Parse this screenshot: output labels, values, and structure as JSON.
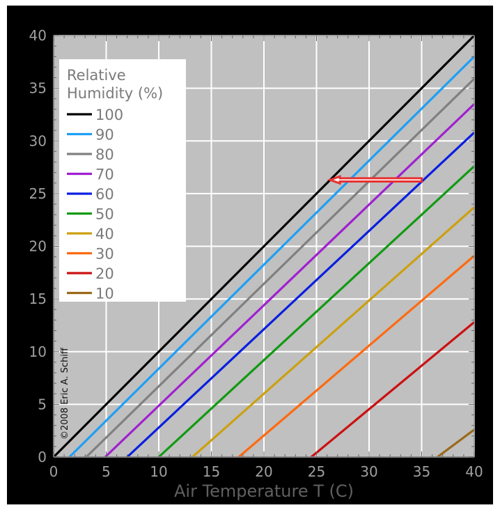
{
  "chart_data": {
    "type": "line",
    "title": "",
    "xlabel": "Air Temperature T (C)",
    "ylabel": "",
    "xlim": [
      0,
      40
    ],
    "ylim": [
      0,
      40
    ],
    "x_ticks": [
      "0",
      "5",
      "10",
      "15",
      "20",
      "25",
      "30",
      "35",
      "40"
    ],
    "y_ticks": [
      "0",
      "5",
      "10",
      "15",
      "20",
      "25",
      "30",
      "35",
      "40"
    ],
    "grid": true,
    "legend_title_lines": [
      "Relative",
      "Humidity (%)"
    ],
    "legend_position": "top-left",
    "series": [
      {
        "name": "100",
        "color": "#000000",
        "x": [
          0,
          40
        ],
        "y": [
          0,
          40
        ]
      },
      {
        "name": "90",
        "color": "#1e9ff5",
        "x": [
          1.5,
          40
        ],
        "y": [
          0,
          38.0
        ]
      },
      {
        "name": "80",
        "color": "#808080",
        "x": [
          3.1,
          40
        ],
        "y": [
          0,
          35.9
        ]
      },
      {
        "name": "70",
        "color": "#a020d0",
        "x": [
          4.9,
          40
        ],
        "y": [
          0,
          33.5
        ]
      },
      {
        "name": "60",
        "color": "#0a1ee0",
        "x": [
          7.0,
          40
        ],
        "y": [
          0,
          30.8
        ]
      },
      {
        "name": "50",
        "color": "#119a11",
        "x": [
          10.0,
          40
        ],
        "y": [
          0,
          27.6
        ]
      },
      {
        "name": "40",
        "color": "#cca010",
        "x": [
          13.2,
          40
        ],
        "y": [
          0,
          23.7
        ]
      },
      {
        "name": "30",
        "color": "#ff6a10",
        "x": [
          17.6,
          40
        ],
        "y": [
          0,
          19.1
        ]
      },
      {
        "name": "20",
        "color": "#cc1010",
        "x": [
          24.5,
          40
        ],
        "y": [
          0,
          12.8
        ]
      },
      {
        "name": "10",
        "color": "#9a6a1a",
        "x": [
          36.5,
          40
        ],
        "y": [
          0,
          2.6
        ]
      }
    ],
    "annotations": [
      {
        "type": "arrow",
        "color": "#e83030",
        "from": [
          35,
          26.3
        ],
        "to": [
          26.3,
          26.3
        ]
      }
    ],
    "copyright": "©2008 Eric A. Schiff"
  }
}
